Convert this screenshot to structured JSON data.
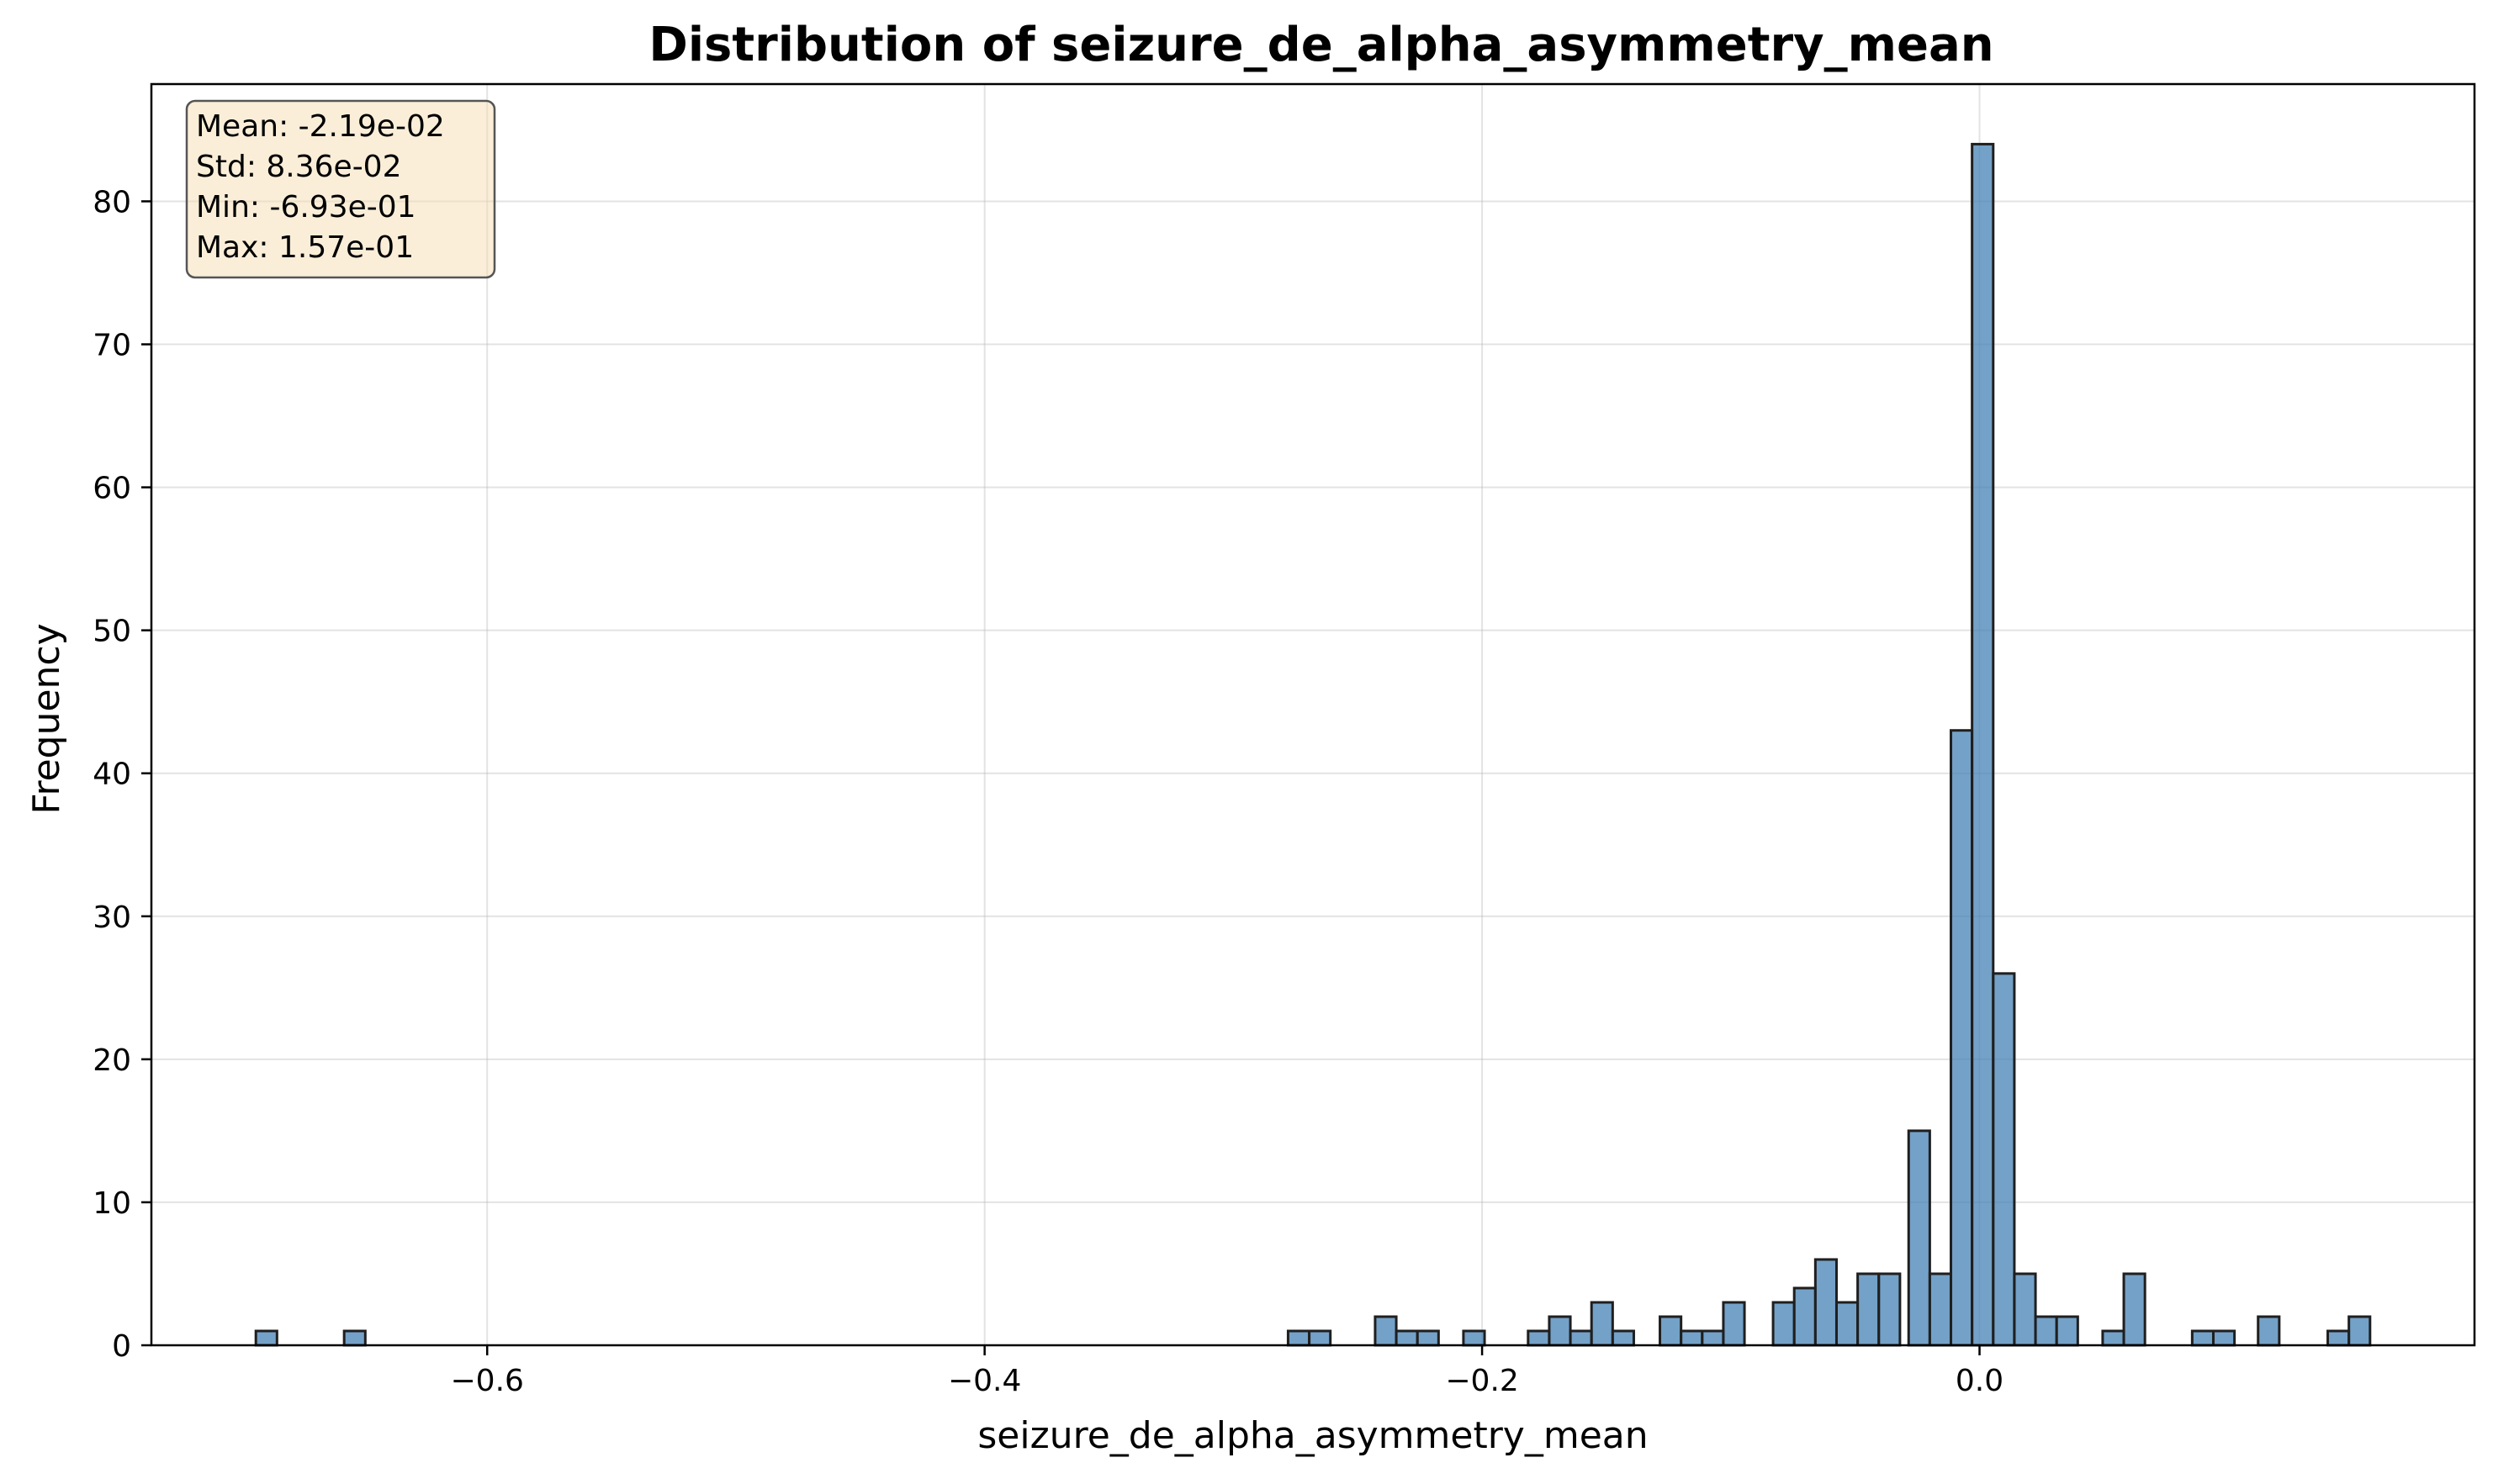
{
  "chart_data": {
    "type": "bar",
    "title": "Distribution of seizure_de_alpha_asymmetry_mean",
    "xlabel": "seizure_de_alpha_asymmetry_mean",
    "ylabel": "Frequency",
    "xlim": [
      -0.735,
      0.199
    ],
    "ylim": [
      0,
      88.2
    ],
    "xticks": [
      -0.6,
      -0.4,
      -0.2,
      0.0
    ],
    "xtick_labels": [
      "−0.6",
      "−0.4",
      "−0.2",
      "0.0"
    ],
    "yticks": [
      0,
      10,
      20,
      30,
      40,
      50,
      60,
      70,
      80
    ],
    "ytick_labels": [
      "0",
      "10",
      "20",
      "30",
      "40",
      "50",
      "60",
      "70",
      "80"
    ],
    "grid": true,
    "bar_color": "#4682b4",
    "bar_edge_color": "#1f1f1f",
    "bin_width": 0.0085,
    "bins": [
      {
        "x0": -0.693,
        "count": 1
      },
      {
        "x0": -0.6575,
        "count": 1
      },
      {
        "x0": -0.278,
        "count": 1
      },
      {
        "x0": -0.2695,
        "count": 1
      },
      {
        "x0": -0.243,
        "count": 2
      },
      {
        "x0": -0.2345,
        "count": 1
      },
      {
        "x0": -0.226,
        "count": 1
      },
      {
        "x0": -0.2075,
        "count": 1
      },
      {
        "x0": -0.1815,
        "count": 1
      },
      {
        "x0": -0.173,
        "count": 2
      },
      {
        "x0": -0.1645,
        "count": 1
      },
      {
        "x0": -0.156,
        "count": 3
      },
      {
        "x0": -0.1475,
        "count": 1
      },
      {
        "x0": -0.1285,
        "count": 2
      },
      {
        "x0": -0.12,
        "count": 1
      },
      {
        "x0": -0.1115,
        "count": 1
      },
      {
        "x0": -0.103,
        "count": 3
      },
      {
        "x0": -0.083,
        "count": 3
      },
      {
        "x0": -0.0745,
        "count": 4
      },
      {
        "x0": -0.066,
        "count": 6
      },
      {
        "x0": -0.0575,
        "count": 3
      },
      {
        "x0": -0.049,
        "count": 5
      },
      {
        "x0": -0.0405,
        "count": 5
      },
      {
        "x0": -0.0285,
        "count": 15
      },
      {
        "x0": -0.02,
        "count": 5
      },
      {
        "x0": -0.0115,
        "count": 43
      },
      {
        "x0": -0.003,
        "count": 84
      },
      {
        "x0": 0.0055,
        "count": 26
      },
      {
        "x0": 0.014,
        "count": 5
      },
      {
        "x0": 0.0225,
        "count": 2
      },
      {
        "x0": 0.031,
        "count": 2
      },
      {
        "x0": 0.0495,
        "count": 1
      },
      {
        "x0": 0.058,
        "count": 5
      },
      {
        "x0": 0.0855,
        "count": 1
      },
      {
        "x0": 0.094,
        "count": 1
      },
      {
        "x0": 0.112,
        "count": 2
      },
      {
        "x0": 0.14,
        "count": 1
      },
      {
        "x0": 0.1485,
        "count": 2
      }
    ],
    "stats_box": {
      "lines": [
        "Mean: -2.19e-02",
        "Std: 8.36e-02",
        "Min: -6.93e-01",
        "Max: 1.57e-01"
      ],
      "background": "#f5deb3",
      "placement": "top-left"
    }
  }
}
